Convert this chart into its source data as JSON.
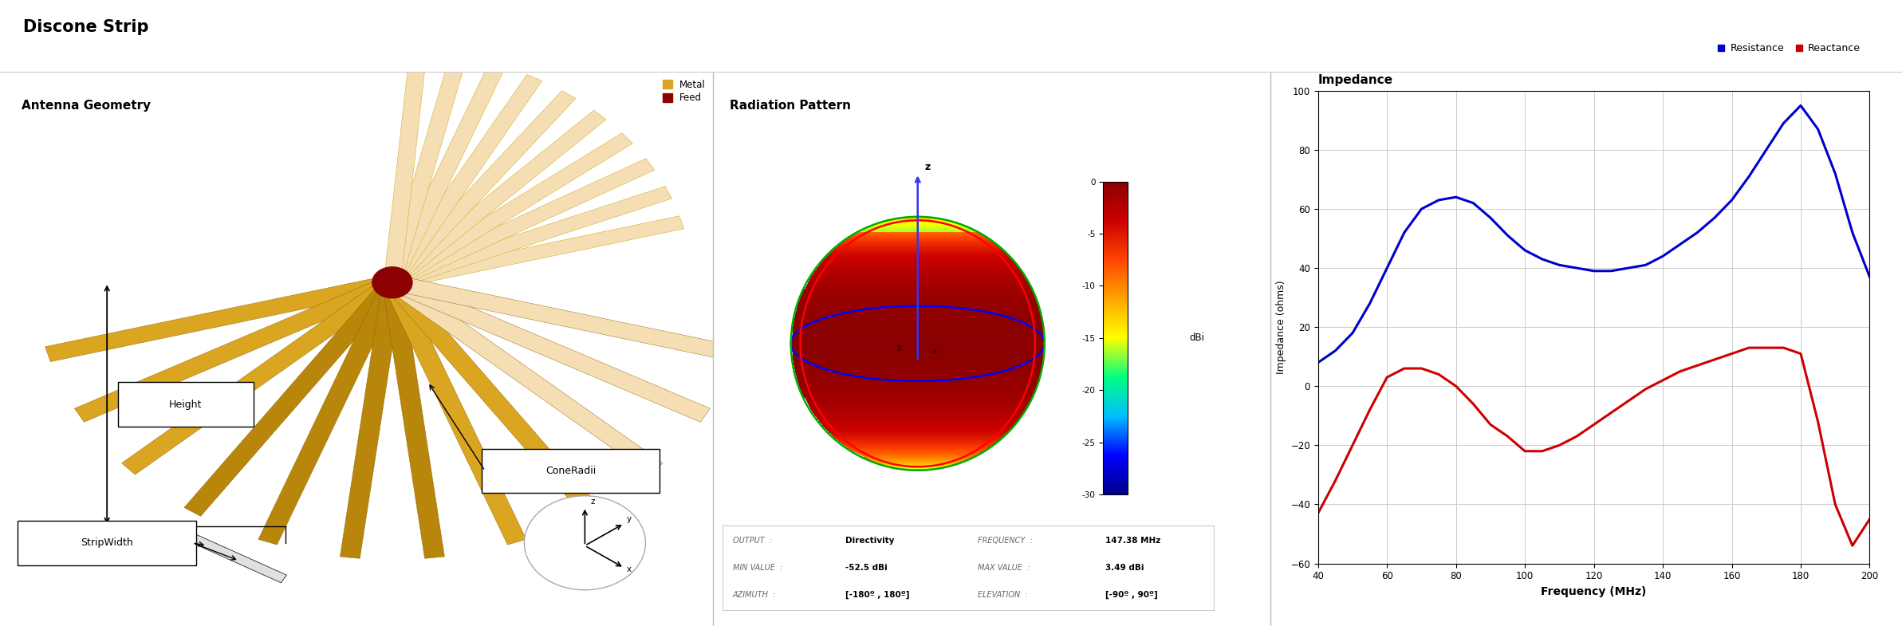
{
  "title": "Discone Strip",
  "title_fontsize": 15,
  "panel_bg": "#e8e8e8",
  "white_bg": "#ffffff",
  "geometry_title": "Antenna Geometry",
  "legend_metal_color": "#DAA520",
  "legend_feed_color": "#8B0000",
  "cone_color_light": "#F5DEB3",
  "cone_color_mid": "#DAA520",
  "cone_color_dark": "#B8860B",
  "feed_color": "#8B0000",
  "radiation_title": "Radiation Pattern",
  "colorbar_label": "dBi",
  "info_output": "Directivity",
  "info_min_value": "-52.5 dBi",
  "info_max_value": "3.49 dBi",
  "info_frequency": "147.38 MHz",
  "info_azimuth": "[-180º , 180º]",
  "info_elevation": "[-90º , 90º]",
  "impedance_title": "Impedance",
  "impedance_xlabel": "Frequency (MHz)",
  "impedance_ylabel": "Impedance (ohms)",
  "impedance_xlim": [
    40,
    200
  ],
  "impedance_ylim": [
    -60,
    100
  ],
  "impedance_xticks": [
    40,
    60,
    80,
    100,
    120,
    140,
    160,
    180,
    200
  ],
  "impedance_yticks": [
    -60,
    -40,
    -20,
    0,
    20,
    40,
    60,
    80,
    100
  ],
  "resistance_color": "#0000CC",
  "reactance_color": "#CC0000",
  "resistance_x": [
    40,
    45,
    50,
    55,
    60,
    65,
    70,
    75,
    80,
    85,
    90,
    95,
    100,
    105,
    110,
    115,
    120,
    125,
    130,
    135,
    140,
    145,
    150,
    155,
    160,
    165,
    170,
    175,
    180,
    185,
    190,
    195,
    200
  ],
  "resistance_y": [
    8,
    12,
    18,
    28,
    40,
    52,
    60,
    63,
    64,
    62,
    57,
    51,
    46,
    43,
    41,
    40,
    39,
    39,
    40,
    41,
    44,
    48,
    52,
    57,
    63,
    71,
    80,
    89,
    95,
    87,
    72,
    52,
    37
  ],
  "reactance_x": [
    40,
    45,
    50,
    55,
    60,
    65,
    70,
    75,
    80,
    85,
    90,
    95,
    100,
    105,
    110,
    115,
    120,
    125,
    130,
    135,
    140,
    145,
    150,
    155,
    160,
    165,
    170,
    175,
    180,
    185,
    190,
    195,
    200
  ],
  "reactance_y": [
    -43,
    -32,
    -20,
    -8,
    3,
    6,
    6,
    4,
    0,
    -6,
    -13,
    -17,
    -22,
    -22,
    -20,
    -17,
    -13,
    -9,
    -5,
    -1,
    2,
    5,
    7,
    9,
    11,
    13,
    13,
    13,
    11,
    -12,
    -40,
    -54,
    -45
  ]
}
